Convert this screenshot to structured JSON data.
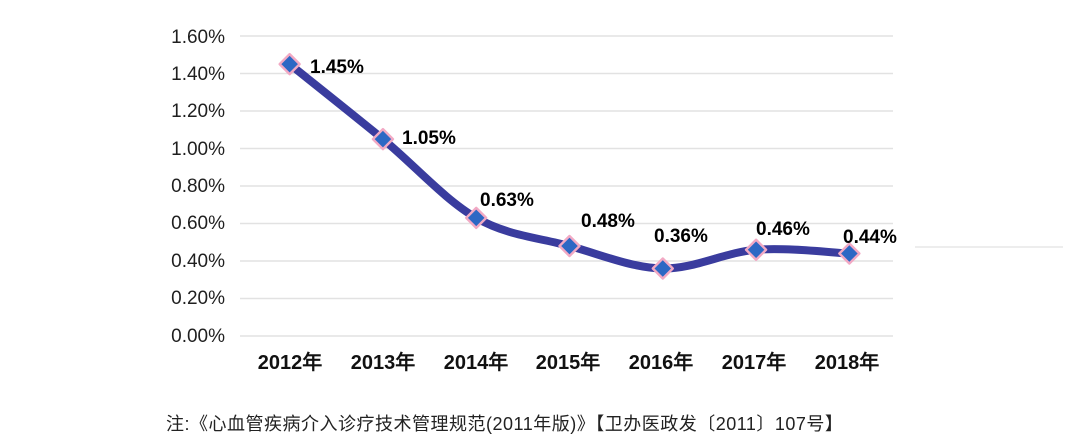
{
  "chart_data": {
    "type": "line",
    "title": "",
    "xlabel": "",
    "ylabel": "",
    "categories": [
      "2012年",
      "2013年",
      "2014年",
      "2015年",
      "2016年",
      "2017年",
      "2018年"
    ],
    "values": [
      1.45,
      1.05,
      0.63,
      0.48,
      0.36,
      0.46,
      0.44
    ],
    "point_labels": [
      "1.45%",
      "1.05%",
      "0.63%",
      "0.48%",
      "0.36%",
      "0.46%",
      "0.44%"
    ],
    "y_ticks": [
      "1.60%",
      "1.40%",
      "1.20%",
      "1.00%",
      "0.80%",
      "0.60%",
      "0.40%",
      "0.20%",
      "0.00%"
    ],
    "ylim": [
      0,
      1.6
    ],
    "grid": "horizontal",
    "legend": "none",
    "line_color": "#3a3c9e",
    "marker_fill": "#2d68c4",
    "marker_stroke": "#f2a9c4",
    "gridline_color": "#e2e2e2",
    "label_color": "#000000"
  },
  "note": "注:《心血管疾病介入诊疗技术管理规范(2011年版)》【卫办医政发〔2011〕107号】"
}
